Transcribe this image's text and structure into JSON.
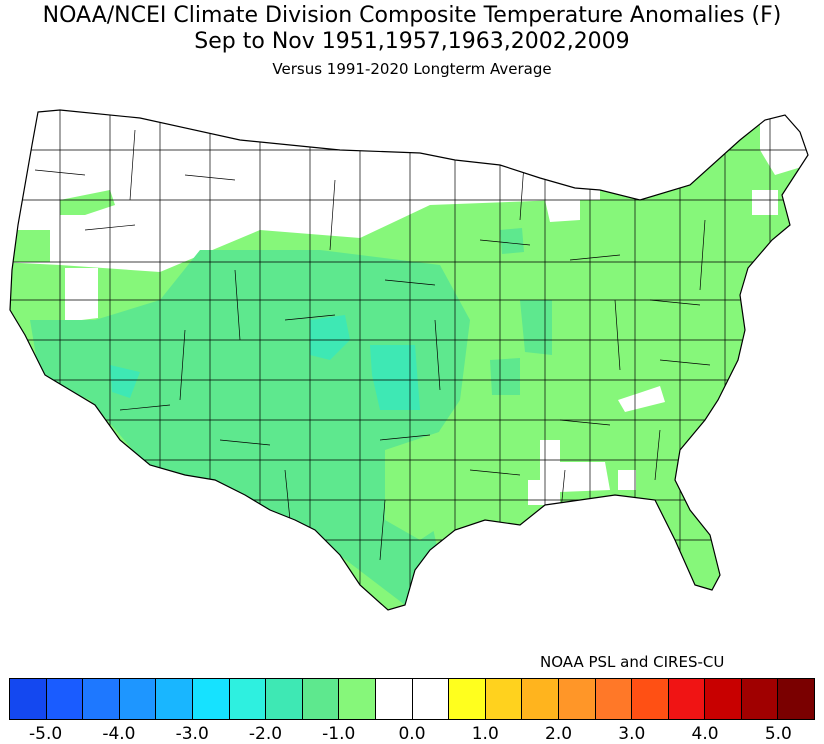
{
  "title": {
    "line1": "NOAA/NCEI Climate Division Composite Temperature Anomalies (F)",
    "line2": "Sep to Nov  1951,1957,1963,2002,2009",
    "line3": "Versus 1991-2020 Longterm Average"
  },
  "credit": "NOAA PSL and CIRES-CU",
  "colors": {
    "-1.0 to -0.5": "#86f77a",
    "-1.5 to -1.0": "#5ee88e",
    "-2.0 to -1.5": "#3ee8b4",
    "near-normal": "#ffffff",
    "boundary": "#000000"
  },
  "colorbar": {
    "colors": [
      "#1448f0",
      "#1a5cff",
      "#1e78ff",
      "#1e96ff",
      "#19b6ff",
      "#16e2ff",
      "#2ef0e0",
      "#3ee8b4",
      "#5ee88e",
      "#86f77a",
      "#ffffff",
      "#ffffff",
      "#ffff1e",
      "#ffd21e",
      "#ffb41e",
      "#ff9628",
      "#ff7828",
      "#ff5014",
      "#f01414",
      "#c80000",
      "#a00000",
      "#7a0000"
    ],
    "tick_labels": [
      "-5.0",
      "-4.0",
      "-3.0",
      "-2.0",
      "-1.0",
      "0.0",
      "1.0",
      "2.0",
      "3.0",
      "4.0",
      "5.0"
    ]
  },
  "chart_data": {
    "type": "heatmap",
    "map": "Contiguous United States climate divisions",
    "variable": "Composite temperature anomaly (F)",
    "season": "Sep to Nov",
    "years": [
      1951,
      1957,
      1963,
      2002,
      2009
    ],
    "baseline": "1991-2020",
    "scale_min": -5.0,
    "scale_max": 5.0,
    "scale_step": 0.5,
    "regions": [
      {
        "region": "Pacific Northwest / Northern Rockies / Northern Plains",
        "anomaly_range": [
          -0.5,
          0.5
        ]
      },
      {
        "region": "Pacific Coast / Great Basin",
        "anomaly_range": [
          -1.5,
          -0.5
        ]
      },
      {
        "region": "Southwest / Southern Rockies",
        "anomaly_range": [
          -2.0,
          -1.0
        ]
      },
      {
        "region": "Central Plains",
        "anomaly_range": [
          -2.0,
          -1.0
        ]
      },
      {
        "region": "Oklahoma",
        "anomaly_range": [
          -2.0,
          -1.5
        ]
      },
      {
        "region": "Texas",
        "anomaly_range": [
          -1.5,
          -1.0
        ]
      },
      {
        "region": "Midwest / Great Lakes",
        "anomaly_range": [
          -1.0,
          -0.5
        ]
      },
      {
        "region": "Southeast / Gulf Coast",
        "anomaly_range": [
          -1.0,
          -0.5
        ]
      },
      {
        "region": "Central Alabama / Tennessee pocket",
        "anomaly_range": [
          -0.5,
          0.5
        ]
      },
      {
        "region": "Northeast / Mid-Atlantic",
        "anomaly_range": [
          -1.0,
          -0.5
        ]
      },
      {
        "region": "Northern Maine",
        "anomaly_range": [
          -0.5,
          0.5
        ]
      }
    ]
  }
}
